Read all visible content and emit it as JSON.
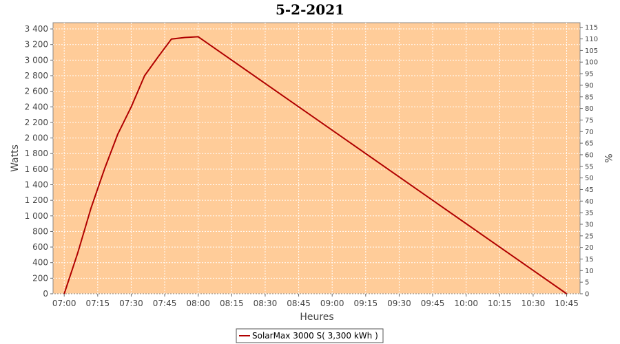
{
  "chart_data": {
    "type": "line",
    "title": "5-2-2021",
    "xlabel": "Heures",
    "ylabel": "Watts",
    "y2label": "%",
    "x_ticks": [
      "07:00",
      "07:15",
      "07:30",
      "07:45",
      "08:00",
      "08:15",
      "08:30",
      "08:45",
      "09:00",
      "09:15",
      "09:30",
      "09:45",
      "10:00",
      "10:15",
      "10:30",
      "10:45"
    ],
    "y_ticks": [
      "0",
      "200",
      "400",
      "600",
      "800",
      "1 000",
      "1 200",
      "1 400",
      "1 600",
      "1 800",
      "2 000",
      "2 200",
      "2 400",
      "2 600",
      "2 800",
      "3 000",
      "3 200",
      "3 400"
    ],
    "y2_ticks": [
      "0",
      "5",
      "10",
      "15",
      "20",
      "25",
      "30",
      "35",
      "40",
      "45",
      "50",
      "55",
      "60",
      "65",
      "70",
      "75",
      "80",
      "85",
      "90",
      "95",
      "100",
      "105",
      "110",
      "115"
    ],
    "ylim": [
      0,
      3480
    ],
    "y2lim": [
      0,
      117
    ],
    "xlim": [
      "06:55",
      "10:51"
    ],
    "grid": true,
    "legend_position": "bottom",
    "background_color": "#ffcc99",
    "line_color": "#b00000",
    "series": [
      {
        "name": "SolarMax 3000 S( 3,300 kWh )",
        "x": [
          "07:00",
          "07:06",
          "07:12",
          "07:18",
          "07:24",
          "07:30",
          "07:36",
          "07:42",
          "07:48",
          "07:54",
          "08:00",
          "10:45"
        ],
        "values": [
          0,
          520,
          1100,
          1600,
          2050,
          2400,
          2800,
          3040,
          3270,
          3290,
          3300,
          0
        ]
      }
    ]
  }
}
